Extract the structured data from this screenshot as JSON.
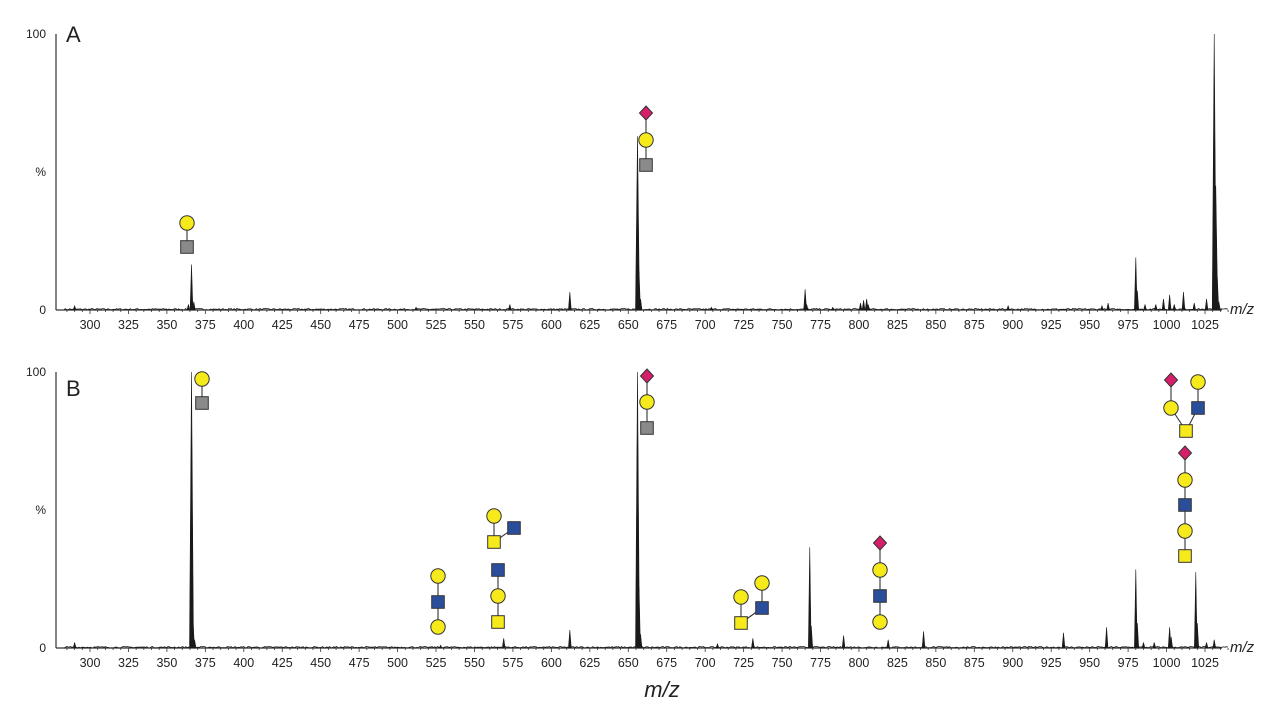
{
  "chart_data": [
    {
      "type": "line",
      "panel": "A",
      "xlabel": "m/z",
      "xlim": [
        283,
        1040
      ],
      "ylim": [
        0,
        100
      ],
      "yticks": [
        "0",
        "%",
        "100"
      ],
      "xticks": [
        300,
        325,
        350,
        375,
        400,
        425,
        450,
        475,
        500,
        525,
        550,
        575,
        600,
        625,
        650,
        675,
        700,
        725,
        750,
        775,
        800,
        825,
        850,
        875,
        900,
        925,
        950,
        975,
        1000,
        1025
      ],
      "peaks": [
        {
          "x": 290,
          "y": 1.5
        },
        {
          "x": 364,
          "y": 2
        },
        {
          "x": 366,
          "y": 16.5
        },
        {
          "x": 367.5,
          "y": 3
        },
        {
          "x": 512,
          "y": 1
        },
        {
          "x": 573,
          "y": 2
        },
        {
          "x": 612,
          "y": 6.5
        },
        {
          "x": 656,
          "y": 63
        },
        {
          "x": 657,
          "y": 14
        },
        {
          "x": 658,
          "y": 4
        },
        {
          "x": 704,
          "y": 1
        },
        {
          "x": 765,
          "y": 7.5
        },
        {
          "x": 766,
          "y": 2
        },
        {
          "x": 783,
          "y": 1
        },
        {
          "x": 801,
          "y": 2.5
        },
        {
          "x": 803,
          "y": 3.5
        },
        {
          "x": 805,
          "y": 4
        },
        {
          "x": 806,
          "y": 2
        },
        {
          "x": 897,
          "y": 1.5
        },
        {
          "x": 958,
          "y": 1.5
        },
        {
          "x": 962,
          "y": 2.5
        },
        {
          "x": 980,
          "y": 19
        },
        {
          "x": 981,
          "y": 7
        },
        {
          "x": 986,
          "y": 2
        },
        {
          "x": 993,
          "y": 2
        },
        {
          "x": 998,
          "y": 4
        },
        {
          "x": 1002,
          "y": 5.5
        },
        {
          "x": 1005,
          "y": 2
        },
        {
          "x": 1011,
          "y": 6.5
        },
        {
          "x": 1018,
          "y": 2.5
        },
        {
          "x": 1026,
          "y": 4
        },
        {
          "x": 1031,
          "y": 100
        },
        {
          "x": 1032,
          "y": 45
        },
        {
          "x": 1033,
          "y": 12
        },
        {
          "x": 1034,
          "y": 3
        }
      ],
      "glycans": [
        {
          "anchor_mz": 366,
          "anchor_y": 16.5,
          "units": [
            "galactose-yellow-circle",
            "galnac-gray-square"
          ]
        },
        {
          "anchor_mz": 656,
          "anchor_y": 63,
          "units": [
            "sialic-acid-magenta-diamond",
            "galactose-yellow-circle",
            "galnac-gray-square"
          ]
        }
      ]
    },
    {
      "type": "line",
      "panel": "B",
      "xlabel": "m/z",
      "xlim": [
        283,
        1040
      ],
      "ylim": [
        0,
        100
      ],
      "yticks": [
        "0",
        "%",
        "100"
      ],
      "xticks": [
        300,
        325,
        350,
        375,
        400,
        425,
        450,
        475,
        500,
        525,
        550,
        575,
        600,
        625,
        650,
        675,
        700,
        725,
        750,
        775,
        800,
        825,
        850,
        875,
        900,
        925,
        950,
        975,
        1000,
        1025
      ],
      "peaks": [
        {
          "x": 290,
          "y": 2
        },
        {
          "x": 366,
          "y": 100
        },
        {
          "x": 367,
          "y": 10
        },
        {
          "x": 368,
          "y": 3
        },
        {
          "x": 528,
          "y": 1
        },
        {
          "x": 569,
          "y": 3.5
        },
        {
          "x": 612,
          "y": 6.5
        },
        {
          "x": 656,
          "y": 100
        },
        {
          "x": 657,
          "y": 22
        },
        {
          "x": 658,
          "y": 5
        },
        {
          "x": 708,
          "y": 1.5
        },
        {
          "x": 731,
          "y": 3.5
        },
        {
          "x": 768,
          "y": 36.5
        },
        {
          "x": 769,
          "y": 8
        },
        {
          "x": 790,
          "y": 4.5
        },
        {
          "x": 819,
          "y": 3
        },
        {
          "x": 842,
          "y": 6
        },
        {
          "x": 933,
          "y": 5.5
        },
        {
          "x": 961,
          "y": 7.5
        },
        {
          "x": 980,
          "y": 28.5
        },
        {
          "x": 981,
          "y": 9
        },
        {
          "x": 985,
          "y": 2
        },
        {
          "x": 992,
          "y": 2
        },
        {
          "x": 1002,
          "y": 7.5
        },
        {
          "x": 1003,
          "y": 4
        },
        {
          "x": 1019,
          "y": 27.5
        },
        {
          "x": 1020,
          "y": 9
        },
        {
          "x": 1026,
          "y": 2
        },
        {
          "x": 1031,
          "y": 3
        }
      ],
      "glycans": [
        {
          "anchor_mz": 366,
          "units": [
            "galactose-yellow-circle",
            "galnac-gray-square"
          ]
        },
        {
          "anchor_mz": 656,
          "units": [
            "sialic-acid-magenta-diamond",
            "galactose-yellow-circle",
            "galnac-gray-square"
          ]
        },
        {
          "anchor_mz": 528,
          "units": [
            "galactose-yellow-circle",
            "glcnac-blue-square",
            "galactose-yellow-circle"
          ]
        },
        {
          "anchor_mz": 569,
          "units": [
            "galactose-yellow-circle",
            "galnac-yellow-square",
            "glcnac-blue-square",
            "glcnac-blue-square",
            "galactose-yellow-circle",
            "galnac-yellow-square"
          ]
        },
        {
          "anchor_mz": 731,
          "units": [
            "galactose-yellow-circle",
            "galactose-yellow-circle",
            "glcnac-blue-square",
            "galnac-yellow-square"
          ]
        },
        {
          "anchor_mz": 819,
          "units": [
            "sialic-acid-magenta-diamond",
            "galactose-yellow-circle",
            "glcnac-blue-square",
            "galactose-yellow-circle"
          ]
        },
        {
          "anchor_mz": 1019,
          "units": [
            "sialic-acid-magenta-diamond",
            "galactose-yellow-circle",
            "galactose-yellow-circle",
            "glcnac-blue-square",
            "galnac-yellow-square",
            "sialic-acid-magenta-diamond",
            "galactose-yellow-circle",
            "glcnac-blue-square",
            "galactose-yellow-circle",
            "galnac-yellow-square"
          ]
        }
      ]
    }
  ],
  "colors": {
    "trace": "#1a1a1a",
    "axis": "#333333",
    "galactose_yellow": "#f7ea1b",
    "galnac_gray": "#8a8a8a",
    "glcnac_blue": "#2a4e9c",
    "sialic_magenta": "#d61f6a"
  },
  "labels": {
    "panel_a": "A",
    "panel_b": "B",
    "y_top": "100",
    "y_mid": "%",
    "y_zero": "0",
    "mz_small": "m/z",
    "mz_big": "m/z"
  }
}
